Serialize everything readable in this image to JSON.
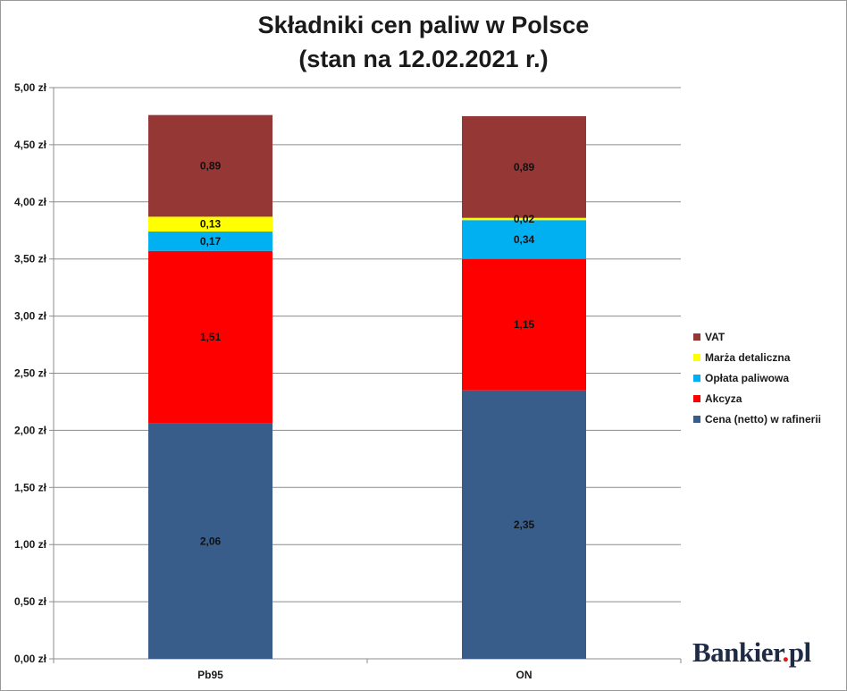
{
  "chart_data": {
    "type": "bar",
    "stacked": true,
    "title": [
      "Składniki cen paliw w Polsce",
      "(stan na 12.02.2021 r.)"
    ],
    "xlabel": "",
    "ylabel": "",
    "categories": [
      "Pb95",
      "ON"
    ],
    "ylim": [
      0,
      5
    ],
    "yticks": [
      "0,00 zł",
      "0,50 zł",
      "1,00 zł",
      "1,50 zł",
      "2,00 zł",
      "2,50 zł",
      "3,00 zł",
      "3,50 zł",
      "4,00 zł",
      "4,50 zł",
      "5,00 zł"
    ],
    "grid": true,
    "legend_position": "right",
    "series": [
      {
        "name": "Cena (netto) w rafinerii",
        "color": "#385d8a",
        "values": [
          2.06,
          2.35
        ],
        "labels": [
          "2,06",
          "2,35"
        ]
      },
      {
        "name": "Akcyza",
        "color": "#ff0000",
        "values": [
          1.51,
          1.15
        ],
        "labels": [
          "1,51",
          "1,15"
        ]
      },
      {
        "name": "Opłata paliwowa",
        "color": "#00b0f0",
        "values": [
          0.17,
          0.34
        ],
        "labels": [
          "0,17",
          "0,34"
        ]
      },
      {
        "name": "Marża detaliczna",
        "color": "#ffff00",
        "values": [
          0.13,
          0.02
        ],
        "labels": [
          "0,13",
          "0,02"
        ]
      },
      {
        "name": "VAT",
        "color": "#953735",
        "values": [
          0.89,
          0.89
        ],
        "labels": [
          "0,89",
          "0,89"
        ]
      }
    ]
  },
  "logo": {
    "brand": "Bankier",
    "dot": ".",
    "tld": "pl"
  }
}
